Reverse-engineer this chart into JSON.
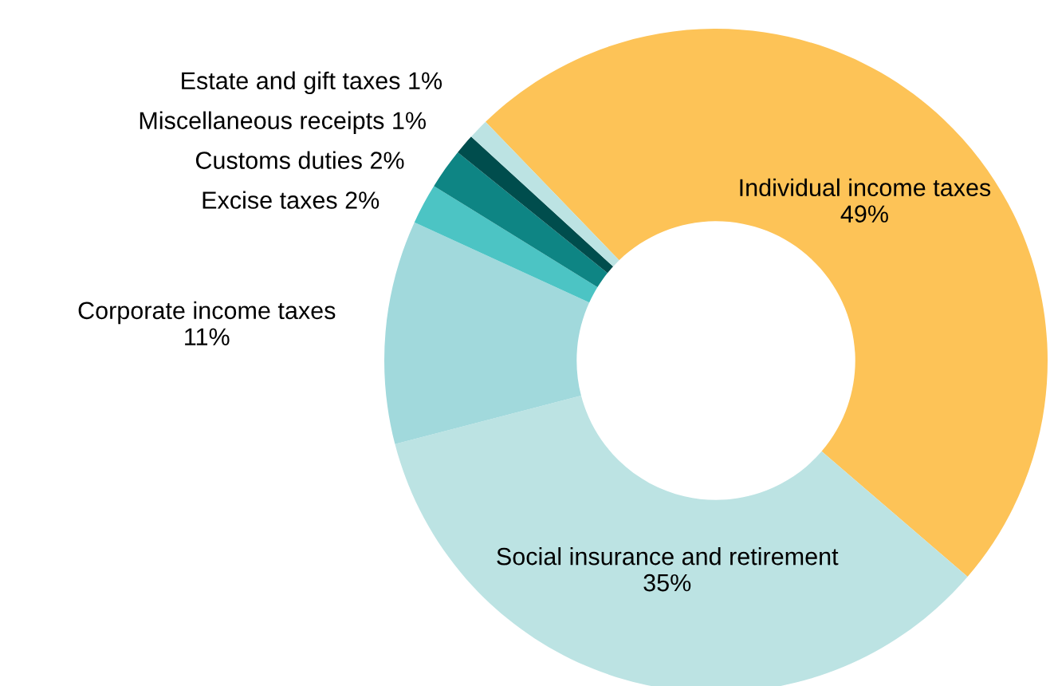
{
  "chart_data": {
    "type": "donut",
    "categories": [
      "Individual income taxes",
      "Social insurance and retirement",
      "Corporate income taxes",
      "Excise taxes",
      "Customs duties",
      "Miscellaneous receipts",
      "Estate and gift taxes"
    ],
    "values": [
      49,
      35,
      11,
      2,
      2,
      1,
      1
    ],
    "value_labels": [
      "49%",
      "35%",
      "11%",
      "2%",
      "2%",
      "1%",
      "1%"
    ],
    "colors": [
      "#fdc357",
      "#bce3e3",
      "#a1d9dc",
      "#4cc4c4",
      "#0e8584",
      "#004d4d",
      "#bce3e3"
    ]
  }
}
